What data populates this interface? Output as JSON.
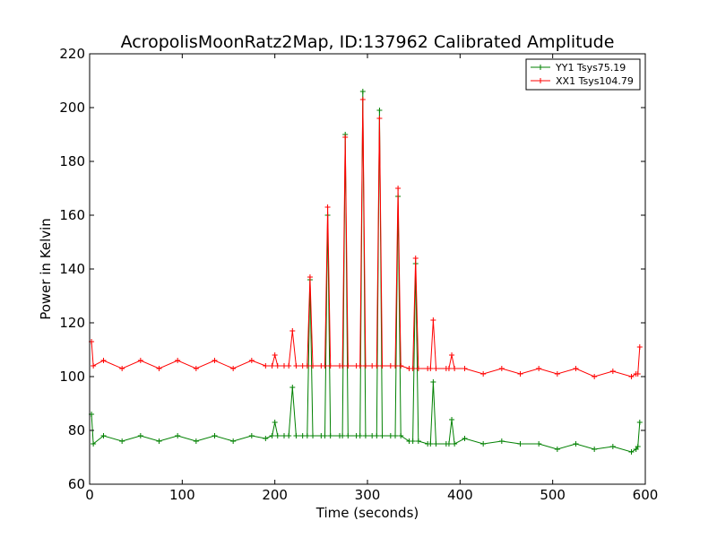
{
  "chart_data": {
    "type": "line",
    "title": "AcropolisMoonRatz2Map, ID:137962 Calibrated Amplitude",
    "xlabel": "Time (seconds)",
    "ylabel": "Power in Kelvin",
    "xlim": [
      0,
      600
    ],
    "ylim": [
      60,
      220
    ],
    "xticks": [
      0,
      100,
      200,
      300,
      400,
      500,
      600
    ],
    "yticks": [
      60,
      80,
      100,
      120,
      140,
      160,
      180,
      200,
      220
    ],
    "grid": false,
    "legend_position": "top-right",
    "series": [
      {
        "name": "YY1 Tsys75.19",
        "color": "#008000",
        "x": [
          2,
          4,
          15,
          35,
          55,
          75,
          95,
          115,
          135,
          155,
          175,
          190,
          197,
          200,
          203,
          210,
          215,
          219,
          223,
          230,
          235,
          238,
          241,
          250,
          254,
          257,
          260,
          270,
          273,
          276,
          279,
          288,
          292,
          295,
          298,
          305,
          310,
          313,
          316,
          325,
          330,
          333,
          336,
          345,
          349,
          352,
          355,
          365,
          368,
          371,
          374,
          385,
          388,
          391,
          394,
          405,
          425,
          445,
          465,
          485,
          505,
          525,
          545,
          565,
          585,
          590,
          592,
          594
        ],
        "y": [
          86,
          75,
          78,
          76,
          78,
          76,
          78,
          76,
          78,
          76,
          78,
          77,
          78,
          83,
          78,
          78,
          78,
          96,
          78,
          78,
          78,
          136,
          78,
          78,
          78,
          160,
          78,
          78,
          78,
          190,
          78,
          78,
          78,
          206,
          78,
          78,
          78,
          199,
          78,
          78,
          78,
          167,
          78,
          76,
          76,
          142,
          76,
          75,
          75,
          98,
          75,
          75,
          75,
          84,
          75,
          77,
          75,
          76,
          75,
          75,
          73,
          75,
          73,
          74,
          72,
          73,
          74,
          83
        ]
      },
      {
        "name": "XX1 Tsys104.79",
        "color": "#ff0000",
        "x": [
          2,
          4,
          15,
          35,
          55,
          75,
          95,
          115,
          135,
          155,
          175,
          190,
          197,
          200,
          203,
          210,
          215,
          219,
          223,
          230,
          235,
          238,
          241,
          250,
          254,
          257,
          260,
          270,
          273,
          276,
          279,
          288,
          292,
          295,
          298,
          305,
          310,
          313,
          316,
          325,
          330,
          333,
          336,
          345,
          349,
          352,
          355,
          365,
          368,
          371,
          374,
          385,
          388,
          391,
          394,
          405,
          425,
          445,
          465,
          485,
          505,
          525,
          545,
          565,
          585,
          590,
          592,
          594
        ],
        "y": [
          113,
          104,
          106,
          103,
          106,
          103,
          106,
          103,
          106,
          103,
          106,
          104,
          104,
          108,
          104,
          104,
          104,
          117,
          104,
          104,
          104,
          137,
          104,
          104,
          104,
          163,
          104,
          104,
          104,
          189,
          104,
          104,
          104,
          203,
          104,
          104,
          104,
          196,
          104,
          104,
          104,
          170,
          104,
          103,
          103,
          144,
          103,
          103,
          103,
          121,
          103,
          103,
          103,
          108,
          103,
          103,
          101,
          103,
          101,
          103,
          101,
          103,
          100,
          102,
          100,
          101,
          101,
          111
        ]
      }
    ]
  }
}
